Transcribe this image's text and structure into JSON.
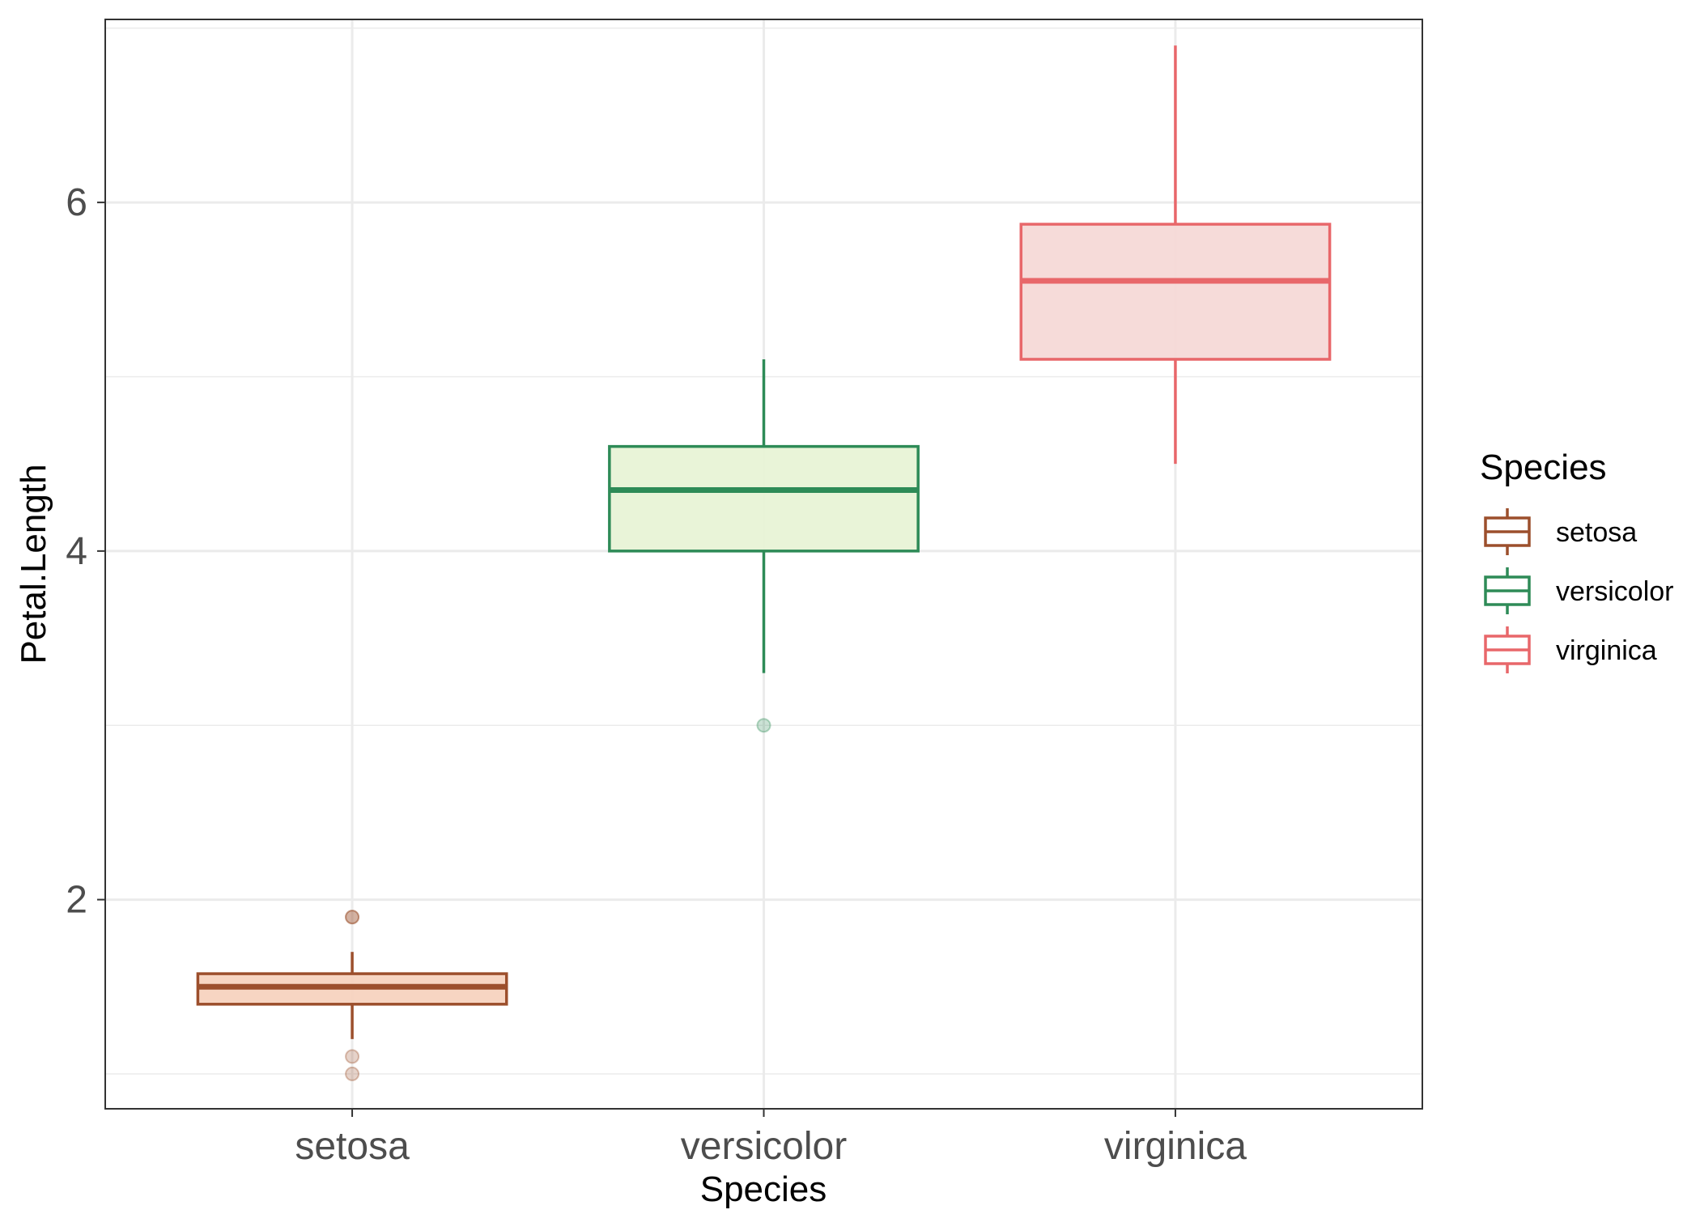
{
  "chart_data": {
    "type": "boxplot",
    "xlabel": "Species",
    "ylabel": "Petal.Length",
    "categories": [
      "setosa",
      "versicolor",
      "virginica"
    ],
    "ylim": [
      0.8,
      7.05
    ],
    "yticks": [
      2,
      4,
      6
    ],
    "grid": true,
    "legend": {
      "title": "Species",
      "position": "right"
    },
    "series": [
      {
        "name": "setosa",
        "color": "#9c4f2c",
        "fill": "#f7d3bf",
        "whisker_low": 1.2,
        "q1": 1.4,
        "median": 1.5,
        "q3": 1.575,
        "whisker_high": 1.7,
        "outliers": [
          1.9,
          1.9,
          1.1,
          1.0
        ]
      },
      {
        "name": "versicolor",
        "color": "#2e8b57",
        "fill": "#e8f3d6",
        "whisker_low": 3.3,
        "q1": 4.0,
        "median": 4.35,
        "q3": 4.6,
        "whisker_high": 5.1,
        "outliers": [
          3.0
        ]
      },
      {
        "name": "virginica",
        "color": "#e8676a",
        "fill": "#f6d9d7",
        "whisker_low": 4.5,
        "q1": 5.1,
        "median": 5.55,
        "q3": 5.875,
        "whisker_high": 6.9,
        "outliers": []
      }
    ]
  }
}
